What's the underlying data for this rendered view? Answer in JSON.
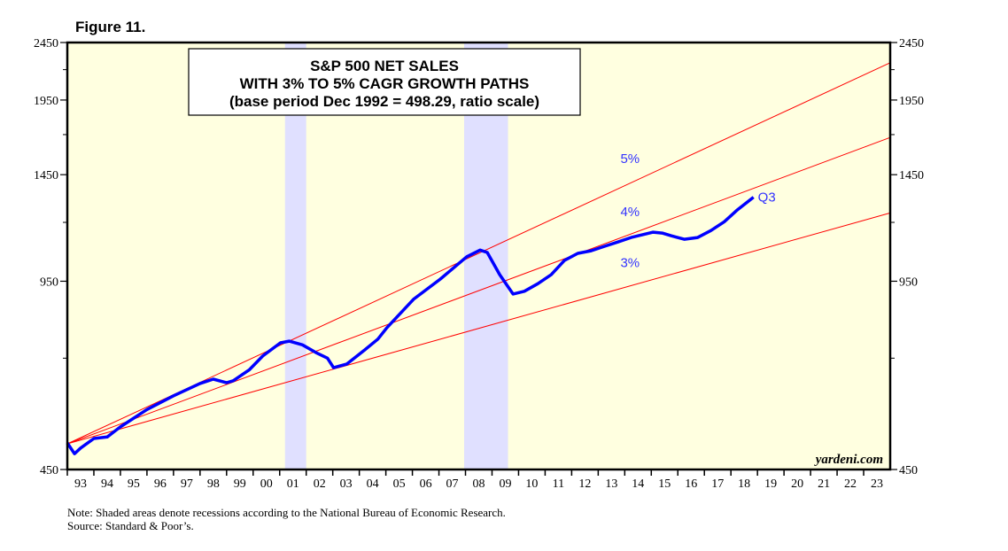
{
  "figure_label": "Figure 11.",
  "watermark": "yardeni.com",
  "notes": [
    "Note: Shaded areas denote recessions according to the National Bureau of Economic Research.",
    "Source: Standard & Poor’s."
  ],
  "colors": {
    "background": "#ffffe0",
    "recession": "#e0e0ff",
    "series": "#0000ff",
    "paths": "#ff0000",
    "labels": "#3333ff"
  },
  "chart_data": {
    "type": "line",
    "title": [
      "S&P 500 NET SALES",
      "WITH 3% TO 5% CAGR GROWTH PATHS",
      "(base period Dec 1992 = 498.29, ratio scale)"
    ],
    "xlabel": "",
    "ylabel": "",
    "scale": "log",
    "ylim": [
      450,
      2450
    ],
    "yticks": [
      450,
      950,
      1450,
      1950,
      2450
    ],
    "xlim": [
      1993,
      2024
    ],
    "xtick_labels": [
      "93",
      "94",
      "95",
      "96",
      "97",
      "98",
      "99",
      "00",
      "01",
      "02",
      "03",
      "04",
      "05",
      "06",
      "07",
      "08",
      "09",
      "10",
      "11",
      "12",
      "13",
      "14",
      "15",
      "16",
      "17",
      "18",
      "19",
      "20",
      "21",
      "22",
      "23"
    ],
    "grid": false,
    "recessions": [
      [
        2001.2,
        2002.0
      ],
      [
        2007.95,
        2009.6
      ]
    ],
    "base": {
      "year": 1993.0,
      "value": 498.29
    },
    "growth_paths": [
      {
        "name": "5%",
        "rate": 0.05
      },
      {
        "name": "4%",
        "rate": 0.04
      },
      {
        "name": "3%",
        "rate": 0.03
      }
    ],
    "series": [
      {
        "name": "S&P 500 Net Sales",
        "end_label": "Q3",
        "x": [
          1993.0,
          1993.27,
          1993.5,
          1994.0,
          1994.5,
          1995.0,
          1996.0,
          1997.0,
          1998.0,
          1998.5,
          1999.0,
          1999.25,
          1999.85,
          2000.36,
          2001.03,
          2001.36,
          2001.86,
          2002.36,
          2002.8,
          2003.03,
          2003.53,
          2004.2,
          2004.7,
          2005.04,
          2006.04,
          2007.05,
          2008.05,
          2008.55,
          2008.82,
          2009.29,
          2009.79,
          2010.22,
          2010.73,
          2011.23,
          2011.73,
          2012.23,
          2012.73,
          2013.23,
          2013.74,
          2014.24,
          2015.07,
          2015.41,
          2015.74,
          2016.24,
          2016.75,
          2017.25,
          2017.75,
          2018.25,
          2018.85
        ],
        "values": [
          500,
          479,
          490,
          509,
          512,
          533,
          571,
          603,
          633,
          644,
          635,
          640,
          668,
          706,
          744,
          749,
          738,
          716,
          700,
          674,
          684,
          723,
          755,
          790,
          884,
          958,
          1047,
          1075,
          1065,
          975,
          903,
          913,
          941,
          975,
          1032,
          1061,
          1072,
          1091,
          1110,
          1130,
          1154,
          1150,
          1138,
          1122,
          1130,
          1162,
          1203,
          1262,
          1326
        ]
      }
    ]
  }
}
